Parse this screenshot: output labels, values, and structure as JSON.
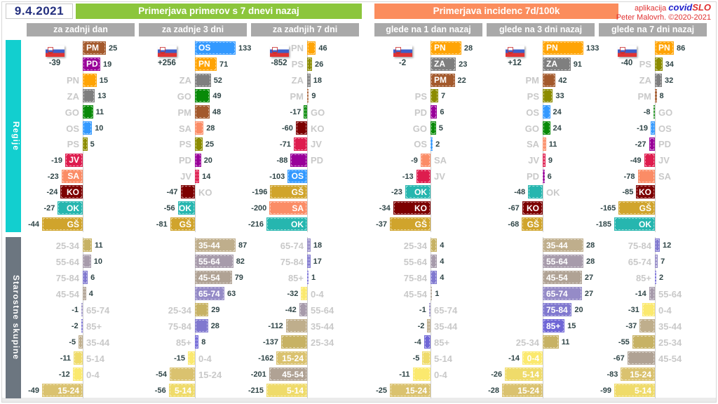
{
  "header": {
    "date": "9.4.2021",
    "left_title": "Primerjava primerov s 7 dnevi nazaj",
    "right_title": "Primerjava incidenc 7d/100k",
    "app_label": "aplikacija",
    "app_name_covid": "covid",
    "app_name_slo": "SLO",
    "credit": "Peter Malovrh. ©2020-2021",
    "green": "#8cc63c",
    "orange": "#fb8d5d"
  },
  "sections": [
    {
      "label": "Regije",
      "color": "#12cfcf"
    },
    {
      "label": "Starostne skupine",
      "color": "#6c7680"
    }
  ],
  "region_colors": {
    "PM": "#a3592c",
    "PD": "#990099",
    "PN": "#ffa405",
    "ZA": "#7f7f7f",
    "GO": "#088a08",
    "OS": "#3399ff",
    "PS": "#8c8c00",
    "JV": "#de1c4e",
    "SA": "#fb8c66",
    "KO": "#7d0000",
    "OK": "#26b6af",
    "GŠ": "#d0a42c"
  },
  "age_colors": {
    "0-4": "#fbe96e",
    "5-14": "#efdb6a",
    "15-24": "#dac26f",
    "25-34": "#c7b264",
    "35-44": "#bfae8c",
    "45-54": "#b0a294",
    "55-64": "#a79bab",
    "65-74": "#958bc7",
    "75-84": "#8078cf",
    "85+": "#6f66d6"
  },
  "chart_data": {
    "type": "bar",
    "orientation": "horizontal-diverging",
    "legend": "rows = [label, value, label_inside_bar]",
    "groups": [
      {
        "period": "za zadnji dan",
        "total": "-39",
        "regions": [
          [
            "PM",
            25,
            1
          ],
          [
            "PD",
            19,
            1
          ],
          [
            "PN",
            15,
            0
          ],
          [
            "ZA",
            13,
            0
          ],
          [
            "GO",
            11,
            0
          ],
          [
            "OS",
            10,
            0
          ],
          [
            "PS",
            5,
            0
          ],
          [
            "JV",
            -19,
            1
          ],
          [
            "SA",
            -23,
            1
          ],
          [
            "KO",
            -24,
            1
          ],
          [
            "OK",
            -27,
            1
          ],
          [
            "GŠ",
            -44,
            1
          ]
        ],
        "ages": [
          [
            "25-34",
            11,
            0
          ],
          [
            "55-64",
            10,
            0
          ],
          [
            "75-84",
            6,
            0
          ],
          [
            "45-54",
            4,
            0
          ],
          [
            "65-74",
            -1,
            0
          ],
          [
            "85+",
            -2,
            0
          ],
          [
            "35-44",
            -5,
            0
          ],
          [
            "5-14",
            -11,
            0
          ],
          [
            "0-4",
            -12,
            0
          ],
          [
            "15-24",
            -49,
            1
          ]
        ]
      },
      {
        "period": "za zadnje 3 dni",
        "total": "+256",
        "regions": [
          [
            "OS",
            133,
            1
          ],
          [
            "PN",
            71,
            1
          ],
          [
            "ZA",
            52,
            0
          ],
          [
            "GO",
            49,
            0
          ],
          [
            "PM",
            48,
            0
          ],
          [
            "SA",
            28,
            0
          ],
          [
            "PS",
            25,
            0
          ],
          [
            "PD",
            20,
            0
          ],
          [
            "JV",
            14,
            0
          ],
          [
            "KO",
            -47,
            0
          ],
          [
            "OK",
            -56,
            1
          ],
          [
            "GŠ",
            -81,
            1
          ]
        ],
        "ages": [
          [
            "35-44",
            87,
            1
          ],
          [
            "55-64",
            82,
            1
          ],
          [
            "45-54",
            79,
            1
          ],
          [
            "65-74",
            63,
            1
          ],
          [
            "25-34",
            29,
            0
          ],
          [
            "75-84",
            28,
            0
          ],
          [
            "85+",
            8,
            0
          ],
          [
            "0-4",
            -15,
            0
          ],
          [
            "15-24",
            -54,
            0
          ],
          [
            "5-14",
            -56,
            1
          ]
        ]
      },
      {
        "period": "za zadnjih 7 dni",
        "total": "-852",
        "regions": [
          [
            "PN",
            46,
            0
          ],
          [
            "PS",
            26,
            0
          ],
          [
            "ZA",
            18,
            0
          ],
          [
            "PM",
            9,
            0
          ],
          [
            "GO",
            -17,
            0
          ],
          [
            "KO",
            -60,
            0
          ],
          [
            "JV",
            -71,
            0
          ],
          [
            "PD",
            -88,
            0
          ],
          [
            "OS",
            -103,
            1
          ],
          [
            "GŠ",
            -196,
            1
          ],
          [
            "SA",
            -200,
            1
          ],
          [
            "OK",
            -216,
            1
          ]
        ],
        "ages": [
          [
            "65-74",
            18,
            0
          ],
          [
            "75-84",
            17,
            0
          ],
          [
            "85+",
            1,
            0
          ],
          [
            "0-4",
            -32,
            0
          ],
          [
            "55-64",
            -42,
            0
          ],
          [
            "35-44",
            -112,
            0
          ],
          [
            "25-34",
            -137,
            0
          ],
          [
            "15-24",
            -162,
            1
          ],
          [
            "45-54",
            -201,
            1
          ],
          [
            "5-14",
            -215,
            1
          ]
        ]
      },
      {
        "period": "glede na 1 dan nazaj",
        "total": "-2",
        "regions": [
          [
            "PN",
            28,
            1
          ],
          [
            "ZA",
            23,
            1
          ],
          [
            "PM",
            22,
            1
          ],
          [
            "PS",
            7,
            0
          ],
          [
            "PD",
            6,
            0
          ],
          [
            "GO",
            5,
            0
          ],
          [
            "OS",
            2,
            0
          ],
          [
            "SA",
            -9,
            0
          ],
          [
            "JV",
            -13,
            0
          ],
          [
            "OK",
            -23,
            1
          ],
          [
            "KO",
            -34,
            1
          ],
          [
            "GŠ",
            -37,
            1
          ]
        ],
        "ages": [
          [
            "25-34",
            4,
            0
          ],
          [
            "55-64",
            4,
            0
          ],
          [
            "75-84",
            4,
            0
          ],
          [
            "45-54",
            1,
            0
          ],
          [
            "65-74",
            -1,
            0
          ],
          [
            "35-44",
            -2,
            0
          ],
          [
            "85+",
            -4,
            0
          ],
          [
            "5-14",
            -5,
            0
          ],
          [
            "0-4",
            -11,
            0
          ],
          [
            "15-24",
            -25,
            1
          ]
        ]
      },
      {
        "period": "glede na 3 dni nazaj",
        "total": "+12",
        "regions": [
          [
            "PN",
            133,
            1
          ],
          [
            "ZA",
            91,
            1
          ],
          [
            "PM",
            42,
            0
          ],
          [
            "PS",
            33,
            0
          ],
          [
            "OS",
            24,
            0
          ],
          [
            "GO",
            24,
            0
          ],
          [
            "SA",
            11,
            0
          ],
          [
            "JV",
            9,
            0
          ],
          [
            "PD",
            6,
            0
          ],
          [
            "OK",
            -48,
            0
          ],
          [
            "KO",
            -67,
            1
          ],
          [
            "GŠ",
            -68,
            1
          ]
        ],
        "ages": [
          [
            "35-44",
            28,
            1
          ],
          [
            "55-64",
            28,
            1
          ],
          [
            "45-54",
            27,
            1
          ],
          [
            "65-74",
            27,
            1
          ],
          [
            "75-84",
            20,
            1
          ],
          [
            "85+",
            15,
            1
          ],
          [
            "25-34",
            11,
            0
          ],
          [
            "0-4",
            -14,
            1
          ],
          [
            "5-14",
            -26,
            1
          ],
          [
            "15-24",
            -28,
            1
          ]
        ]
      },
      {
        "period": "glede na 7 dni nazaj",
        "total": "-40",
        "regions": [
          [
            "PN",
            86,
            1
          ],
          [
            "PS",
            34,
            0
          ],
          [
            "ZA",
            32,
            0
          ],
          [
            "PM",
            8,
            0
          ],
          [
            "GO",
            -8,
            0
          ],
          [
            "OS",
            -19,
            0
          ],
          [
            "PD",
            -27,
            0
          ],
          [
            "JV",
            -49,
            0
          ],
          [
            "SA",
            -78,
            0
          ],
          [
            "KO",
            -85,
            1
          ],
          [
            "GŠ",
            -165,
            1
          ],
          [
            "OK",
            -185,
            1
          ]
        ],
        "ages": [
          [
            "75-84",
            12,
            0
          ],
          [
            "65-74",
            7,
            0
          ],
          [
            "85+",
            2,
            0
          ],
          [
            "55-64",
            -14,
            0
          ],
          [
            "0-4",
            -31,
            0
          ],
          [
            "35-44",
            -37,
            0
          ],
          [
            "25-34",
            -55,
            0
          ],
          [
            "45-54",
            -67,
            0
          ],
          [
            "15-24",
            -83,
            1
          ],
          [
            "5-14",
            -99,
            1
          ]
        ]
      }
    ]
  }
}
